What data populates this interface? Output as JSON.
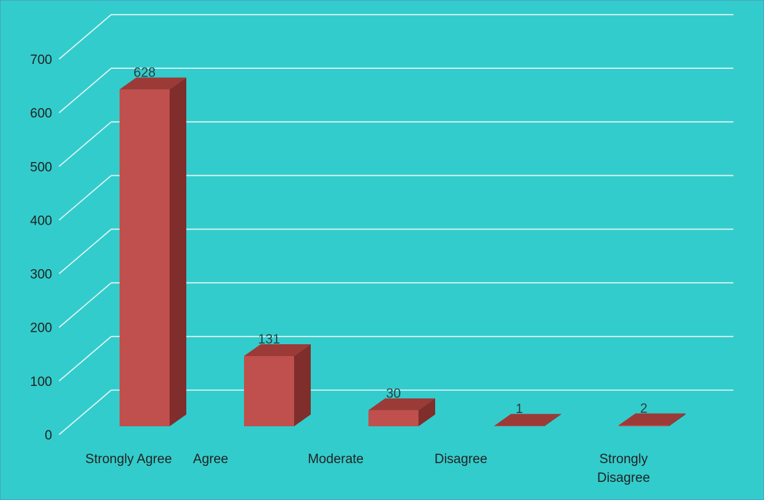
{
  "chart_data": {
    "type": "bar",
    "style": "3d-column",
    "categories": [
      "Strongly Agree",
      "Agree",
      "Moderate",
      "Disagree",
      "Strongly Disagree"
    ],
    "category_label_lines": [
      [
        "Strongly Agree"
      ],
      [
        "Agree"
      ],
      [
        "Moderate"
      ],
      [
        "Disagree"
      ],
      [
        "Strongly",
        "Disagree"
      ]
    ],
    "values": [
      628,
      131,
      30,
      1,
      2
    ],
    "data_labels": [
      "628",
      "131",
      "30",
      "1",
      "2"
    ],
    "ylim": [
      0,
      700
    ],
    "yticks": [
      0,
      100,
      200,
      300,
      400,
      500,
      600,
      700
    ],
    "ytick_labels": [
      "0",
      "100",
      "200",
      "300",
      "400",
      "500",
      "600",
      "700"
    ],
    "title": "",
    "xlabel": "",
    "ylabel": "",
    "grid": true,
    "legend": "none",
    "colors": {
      "background": "#33cccc",
      "border": "#4aa3c8",
      "gridline": "#e6f6f6",
      "bar_front": "#c0504d",
      "bar_top": "#9b3a37",
      "bar_side": "#7f2e2c",
      "text": "#222222"
    }
  }
}
